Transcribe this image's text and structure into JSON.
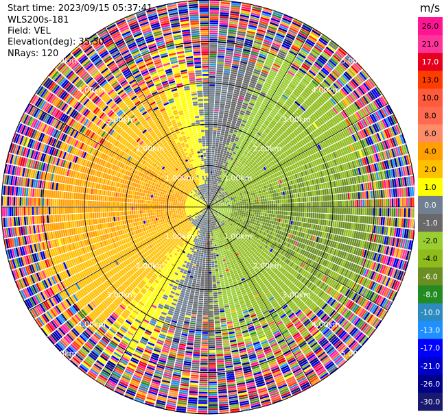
{
  "info": {
    "start_time": "Start time: 2023/09/15 05:37:41",
    "instrument": "WLS200s-181",
    "field": "Field: VEL",
    "elevation": "Elevation(deg): 35.30",
    "nrays": "NRays: 120"
  },
  "colors": {
    "ring": "#000000",
    "background": "#ffffff"
  },
  "chart_data": {
    "type": "heatmap",
    "projection": "polar-ppi",
    "field": "VEL",
    "units": "m/s",
    "nrays": 120,
    "max_range_km": 5.0,
    "range_rings_km": [
      1,
      2,
      3,
      4,
      5
    ],
    "ring_labels": [
      "1.00km",
      "2.00km",
      "3.00km",
      "4.00km",
      "5.00km"
    ],
    "spoke_angles_deg": [
      0,
      30,
      60,
      90,
      120,
      150,
      180,
      210,
      240,
      270,
      300,
      330
    ],
    "colorbar": {
      "title": "m/s",
      "tick_labels": [
        "26.0",
        "21.0",
        "17.0",
        "13.0",
        "10.0",
        "8.0",
        "6.0",
        "4.0",
        "2.0",
        "1.0",
        "0.0",
        "-1.0",
        "-2.0",
        "-4.0",
        "-6.0",
        "-8.0",
        "-10.0",
        "-13.0",
        "-17.0",
        "-21.0",
        "-26.0",
        "-30.0"
      ],
      "bins": [
        {
          "min": 26,
          "max": 30,
          "color": "#ff1493"
        },
        {
          "min": 21,
          "max": 26,
          "color": "#ff3399"
        },
        {
          "min": 17,
          "max": 21,
          "color": "#e6001e"
        },
        {
          "min": 13,
          "max": 17,
          "color": "#ff3c00"
        },
        {
          "min": 10,
          "max": 13,
          "color": "#ff5a3c"
        },
        {
          "min": 8,
          "max": 10,
          "color": "#ff6a50"
        },
        {
          "min": 6,
          "max": 8,
          "color": "#ff8c69"
        },
        {
          "min": 4,
          "max": 6,
          "color": "#ff9f00"
        },
        {
          "min": 2,
          "max": 4,
          "color": "#ffc000"
        },
        {
          "min": 1,
          "max": 2,
          "color": "#ffff00"
        },
        {
          "min": 0,
          "max": 1,
          "color": "#708090"
        },
        {
          "min": -1,
          "max": 0,
          "color": "#696969"
        },
        {
          "min": -2,
          "max": -1,
          "color": "#9acd32"
        },
        {
          "min": -4,
          "max": -2,
          "color": "#8fbc1c"
        },
        {
          "min": -6,
          "max": -4,
          "color": "#6b8e23"
        },
        {
          "min": -8,
          "max": -6,
          "color": "#228b22"
        },
        {
          "min": -10,
          "max": -8,
          "color": "#2e8bc0"
        },
        {
          "min": -13,
          "max": -10,
          "color": "#1e90ff"
        },
        {
          "min": -17,
          "max": -13,
          "color": "#0000ff"
        },
        {
          "min": -21,
          "max": -17,
          "color": "#0000cd"
        },
        {
          "min": -26,
          "max": -21,
          "color": "#00008b"
        },
        {
          "min": -30,
          "max": -26,
          "color": "#191970"
        }
      ]
    }
  }
}
